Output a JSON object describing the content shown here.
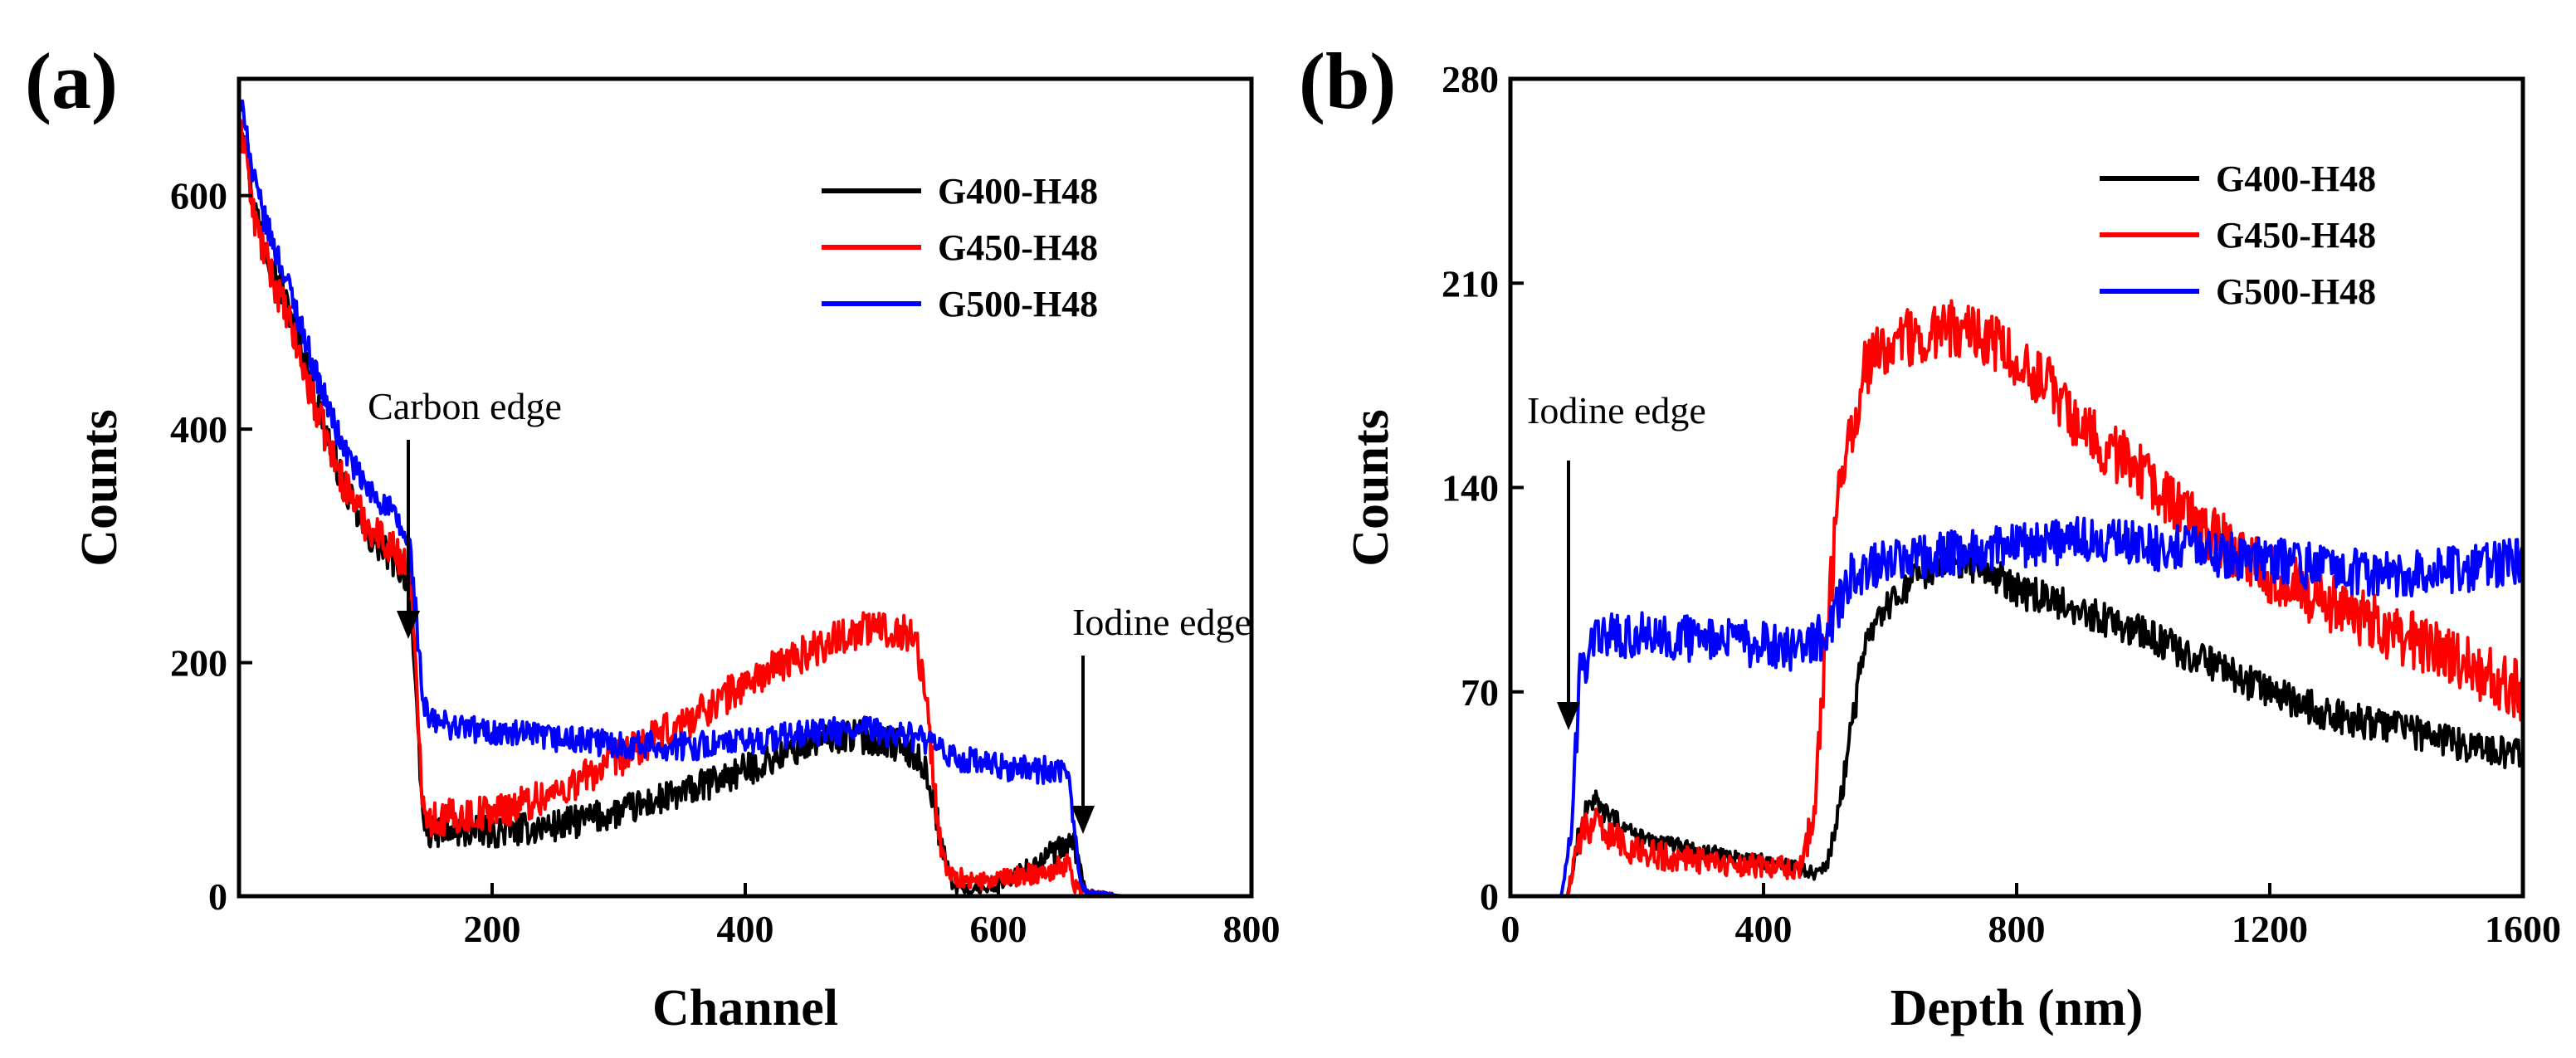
{
  "chart_data": [
    {
      "type": "line",
      "panel_label": "(a)",
      "xlabel": "Channel",
      "ylabel": "Counts",
      "xlim": [
        0,
        800
      ],
      "ylim": [
        0,
        700
      ],
      "xticks": [
        200,
        400,
        600,
        800
      ],
      "yticks": [
        0,
        200,
        400,
        600
      ],
      "legend_position": "top-right",
      "colors": [
        "#000000",
        "#ff0000",
        "#0000ff"
      ],
      "series": [
        {
          "name": "G400-H48",
          "color": "#000000",
          "points": [
            [
              5,
              660
            ],
            [
              10,
              600
            ],
            [
              20,
              560
            ],
            [
              40,
              500
            ],
            [
              60,
              430
            ],
            [
              80,
              360
            ],
            [
              100,
              310
            ],
            [
              120,
              290
            ],
            [
              135,
              270
            ],
            [
              140,
              160
            ],
            [
              145,
              70
            ],
            [
              150,
              55
            ],
            [
              200,
              55
            ],
            [
              250,
              60
            ],
            [
              300,
              72
            ],
            [
              350,
              88
            ],
            [
              400,
              108
            ],
            [
              450,
              130
            ],
            [
              480,
              138
            ],
            [
              500,
              135
            ],
            [
              520,
              130
            ],
            [
              540,
              115
            ],
            [
              550,
              80
            ],
            [
              555,
              40
            ],
            [
              565,
              8
            ],
            [
              580,
              5
            ],
            [
              600,
              10
            ],
            [
              620,
              22
            ],
            [
              640,
              35
            ],
            [
              660,
              45
            ],
            [
              665,
              20
            ],
            [
              670,
              2
            ],
            [
              700,
              0
            ],
            [
              800,
              0
            ]
          ],
          "noise": 14
        },
        {
          "name": "G450-H48",
          "color": "#ff0000",
          "points": [
            [
              5,
              650
            ],
            [
              10,
              590
            ],
            [
              20,
              550
            ],
            [
              40,
              490
            ],
            [
              60,
              420
            ],
            [
              80,
              360
            ],
            [
              100,
              320
            ],
            [
              120,
              300
            ],
            [
              135,
              280
            ],
            [
              140,
              180
            ],
            [
              145,
              90
            ],
            [
              150,
              65
            ],
            [
              200,
              72
            ],
            [
              250,
              88
            ],
            [
              300,
              118
            ],
            [
              350,
              148
            ],
            [
              400,
              182
            ],
            [
              450,
              210
            ],
            [
              480,
              225
            ],
            [
              500,
              230
            ],
            [
              520,
              228
            ],
            [
              535,
              222
            ],
            [
              545,
              150
            ],
            [
              552,
              60
            ],
            [
              560,
              20
            ],
            [
              580,
              12
            ],
            [
              600,
              14
            ],
            [
              620,
              18
            ],
            [
              640,
              22
            ],
            [
              655,
              28
            ],
            [
              660,
              10
            ],
            [
              670,
              3
            ],
            [
              700,
              0
            ],
            [
              800,
              0
            ]
          ],
          "noise": 16
        },
        {
          "name": "G500-H48",
          "color": "#0000ff",
          "points": [
            [
              5,
              670
            ],
            [
              10,
              620
            ],
            [
              20,
              580
            ],
            [
              40,
              520
            ],
            [
              60,
              450
            ],
            [
              80,
              390
            ],
            [
              100,
              350
            ],
            [
              120,
              330
            ],
            [
              135,
              300
            ],
            [
              140,
              240
            ],
            [
              145,
              170
            ],
            [
              150,
              150
            ],
            [
              200,
              140
            ],
            [
              250,
              135
            ],
            [
              300,
              130
            ],
            [
              350,
              128
            ],
            [
              400,
              132
            ],
            [
              450,
              140
            ],
            [
              500,
              142
            ],
            [
              540,
              135
            ],
            [
              560,
              120
            ],
            [
              600,
              110
            ],
            [
              640,
              108
            ],
            [
              655,
              102
            ],
            [
              660,
              60
            ],
            [
              665,
              15
            ],
            [
              670,
              3
            ],
            [
              700,
              0
            ],
            [
              800,
              0
            ]
          ],
          "noise": 12
        }
      ],
      "annotations": [
        {
          "text": "Carbon edge",
          "x": 140,
          "y": 230
        },
        {
          "text": "Iodine edge",
          "x": 662,
          "y": 40
        }
      ]
    },
    {
      "type": "line",
      "panel_label": "(b)",
      "xlabel": "Depth (nm)",
      "ylabel": "Counts",
      "xlim": [
        0,
        1600
      ],
      "ylim": [
        0,
        280
      ],
      "xticks": [
        0,
        400,
        800,
        1200,
        1600
      ],
      "yticks": [
        0,
        70,
        140,
        210,
        280
      ],
      "legend_position": "top-right",
      "colors": [
        "#000000",
        "#ff0000",
        "#0000ff"
      ],
      "series": [
        {
          "name": "G400-H48",
          "color": "#000000",
          "points": [
            [
              0,
              0
            ],
            [
              90,
              0
            ],
            [
              100,
              10
            ],
            [
              110,
              25
            ],
            [
              130,
              33
            ],
            [
              150,
              28
            ],
            [
              200,
              20
            ],
            [
              300,
              15
            ],
            [
              400,
              12
            ],
            [
              450,
              10
            ],
            [
              480,
              8
            ],
            [
              500,
              10
            ],
            [
              520,
              30
            ],
            [
              540,
              60
            ],
            [
              560,
              85
            ],
            [
              600,
              100
            ],
            [
              650,
              110
            ],
            [
              700,
              115
            ],
            [
              750,
              112
            ],
            [
              800,
              105
            ],
            [
              900,
              98
            ],
            [
              1000,
              90
            ],
            [
              1100,
              80
            ],
            [
              1200,
              70
            ],
            [
              1300,
              62
            ],
            [
              1400,
              58
            ],
            [
              1500,
              52
            ],
            [
              1600,
              48
            ]
          ],
          "noise": 6
        },
        {
          "name": "G450-H48",
          "color": "#ff0000",
          "points": [
            [
              0,
              0
            ],
            [
              90,
              0
            ],
            [
              100,
              10
            ],
            [
              110,
              20
            ],
            [
              130,
              25
            ],
            [
              150,
              22
            ],
            [
              200,
              15
            ],
            [
              300,
              12
            ],
            [
              400,
              10
            ],
            [
              460,
              10
            ],
            [
              480,
              30
            ],
            [
              500,
              90
            ],
            [
              520,
              140
            ],
            [
              560,
              180
            ],
            [
              600,
              190
            ],
            [
              650,
              192
            ],
            [
              700,
              195
            ],
            [
              750,
              190
            ],
            [
              800,
              185
            ],
            [
              850,
              175
            ],
            [
              900,
              160
            ],
            [
              1000,
              145
            ],
            [
              1100,
              125
            ],
            [
              1200,
              110
            ],
            [
              1300,
              100
            ],
            [
              1400,
              90
            ],
            [
              1500,
              80
            ],
            [
              1600,
              70
            ]
          ],
          "noise": 10
        },
        {
          "name": "G500-H48",
          "color": "#0000ff",
          "points": [
            [
              0,
              0
            ],
            [
              80,
              0
            ],
            [
              95,
              20
            ],
            [
              110,
              75
            ],
            [
              130,
              88
            ],
            [
              200,
              90
            ],
            [
              300,
              88
            ],
            [
              400,
              86
            ],
            [
              460,
              85
            ],
            [
              500,
              90
            ],
            [
              540,
              110
            ],
            [
              600,
              115
            ],
            [
              700,
              118
            ],
            [
              800,
              120
            ],
            [
              900,
              122
            ],
            [
              1000,
              120
            ],
            [
              1100,
              118
            ],
            [
              1200,
              115
            ],
            [
              1300,
              112
            ],
            [
              1400,
              110
            ],
            [
              1500,
              112
            ],
            [
              1600,
              115
            ]
          ],
          "noise": 8
        }
      ],
      "annotations": [
        {
          "text": "Iodine edge",
          "x": 92,
          "y": 65
        }
      ]
    }
  ]
}
